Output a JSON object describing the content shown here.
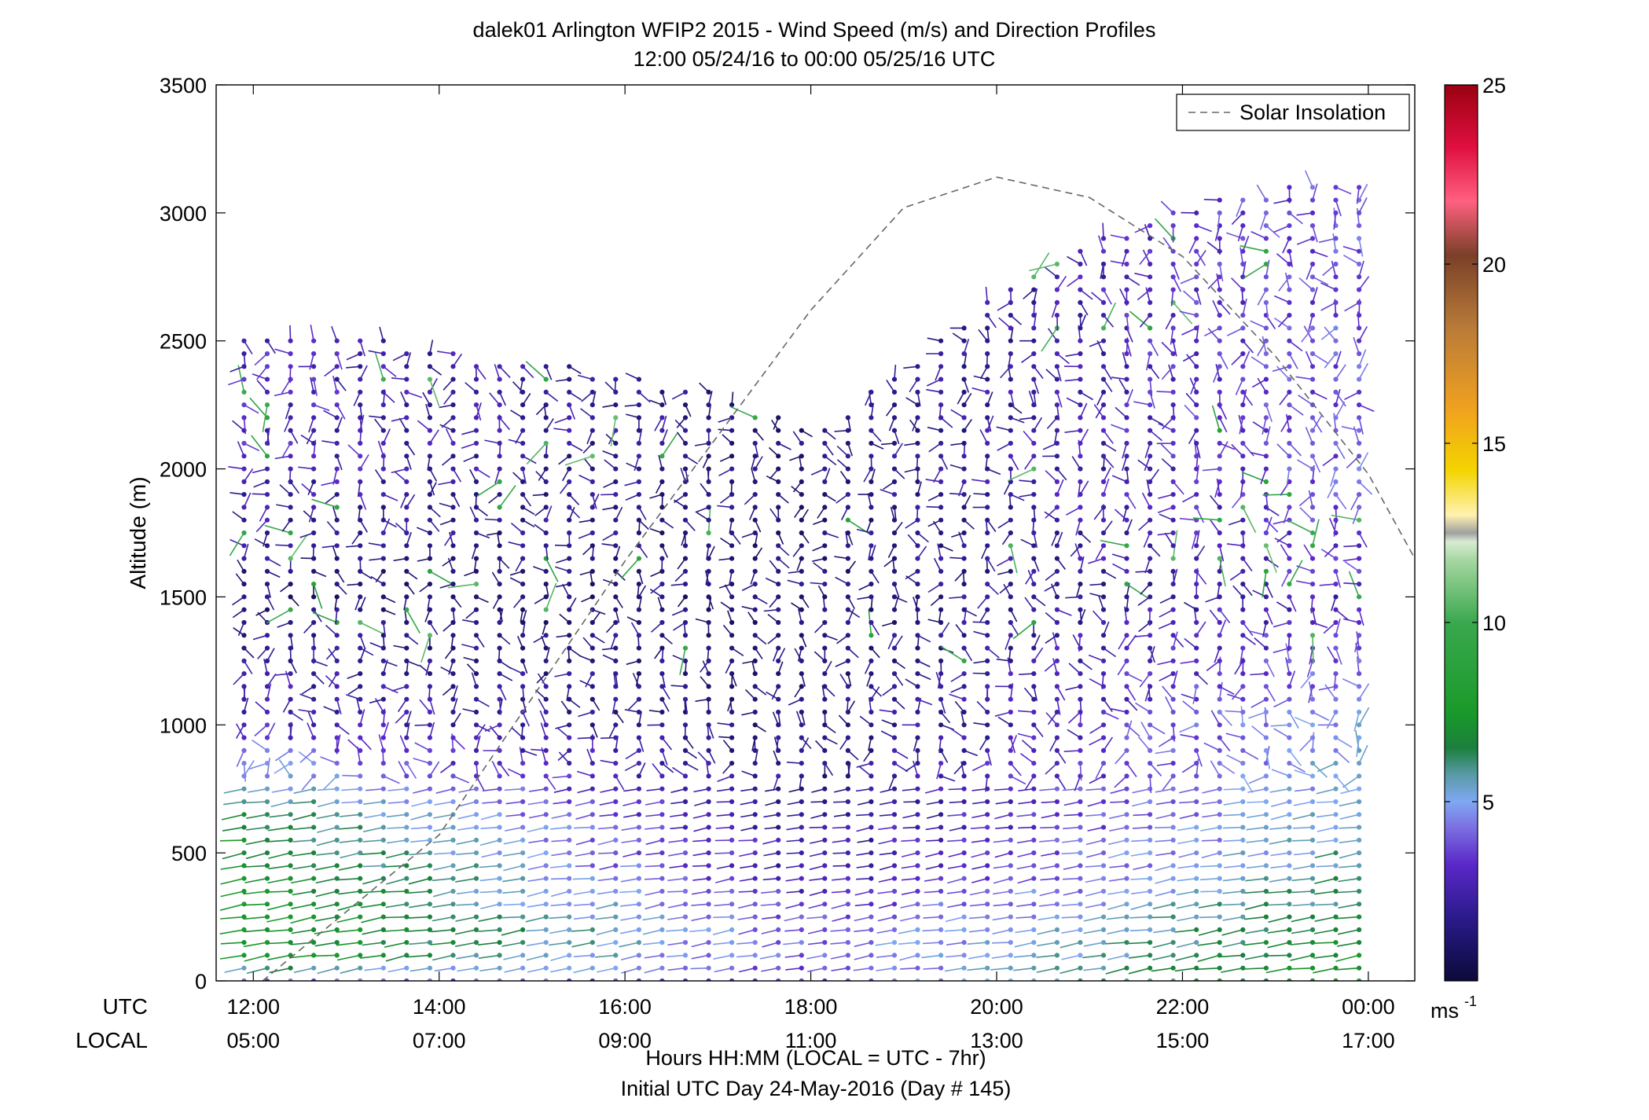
{
  "chart_data": {
    "type": "wind_barb_profile",
    "title": "dalek01 Arlington WFIP2 2015 - Wind Speed (m/s) and Direction Profiles",
    "subtitle": "12:00 05/24/16 to 00:00 05/25/16  UTC",
    "ylabel": "Altitude (m)",
    "xlabel": "Hours HH:MM  (LOCAL = UTC - 7hr)",
    "xlabel2": "Initial UTC Day 24-May-2016 (Day # 145)",
    "row_label_utc": "UTC",
    "row_label_local": "LOCAL",
    "colorbar_unit": "ms",
    "colorbar_unit_exp": "-1",
    "xlim": [
      11.6,
      24.5
    ],
    "ylim": [
      0,
      3500
    ],
    "yticks": [
      0,
      500,
      1000,
      1500,
      2000,
      2500,
      3000,
      3500
    ],
    "xticks_hours": [
      12,
      14,
      16,
      18,
      20,
      22,
      24
    ],
    "xtick_labels_utc": [
      "12:00",
      "14:00",
      "16:00",
      "18:00",
      "20:00",
      "22:00",
      "00:00"
    ],
    "xtick_labels_local": [
      "05:00",
      "07:00",
      "09:00",
      "11:00",
      "13:00",
      "15:00",
      "17:00"
    ],
    "colorbar_range": [
      0,
      25
    ],
    "colorbar_ticks": [
      5,
      10,
      15,
      20,
      25
    ],
    "legend": {
      "label": "Solar Insolation",
      "position": "top-right"
    },
    "solar_insolation": {
      "style": "dashed",
      "color": "#666666",
      "points": [
        [
          12.0,
          -30
        ],
        [
          14.0,
          570
        ],
        [
          16.0,
          1640
        ],
        [
          18.0,
          2620
        ],
        [
          19.0,
          3020
        ],
        [
          20.0,
          3140
        ],
        [
          21.0,
          3060
        ],
        [
          22.0,
          2830
        ],
        [
          23.0,
          2440
        ],
        [
          24.0,
          1980
        ],
        [
          24.5,
          1650
        ]
      ]
    },
    "wind": {
      "times_start": 11.9,
      "times_end": 23.9,
      "time_step": 0.25,
      "altitude_step": 50,
      "top_altitude_by_hour": [
        [
          12,
          2500
        ],
        [
          13,
          2540
        ],
        [
          14,
          2460
        ],
        [
          15,
          2420
        ],
        [
          16,
          2380
        ],
        [
          17,
          2300
        ],
        [
          18,
          2150
        ],
        [
          19,
          2400
        ],
        [
          20,
          2700
        ],
        [
          21,
          2900
        ],
        [
          22,
          3020
        ],
        [
          23,
          3100
        ],
        [
          24,
          3120
        ]
      ],
      "speed_by_altitude_at_12utc": [
        [
          0,
          4
        ],
        [
          100,
          8
        ],
        [
          300,
          8
        ],
        [
          600,
          7
        ],
        [
          800,
          5
        ],
        [
          1000,
          3
        ],
        [
          1500,
          1.5
        ],
        [
          2000,
          3
        ],
        [
          2500,
          3
        ]
      ],
      "speed_by_altitude_at_18utc": [
        [
          0,
          3.5
        ],
        [
          200,
          4
        ],
        [
          400,
          2.5
        ],
        [
          1000,
          1.5
        ],
        [
          2000,
          1.5
        ]
      ],
      "speed_by_altitude_at_24utc": [
        [
          0,
          8
        ],
        [
          300,
          6.5
        ],
        [
          600,
          5.5
        ],
        [
          1000,
          5
        ],
        [
          1500,
          3
        ],
        [
          2000,
          4
        ],
        [
          3000,
          4
        ]
      ]
    }
  }
}
